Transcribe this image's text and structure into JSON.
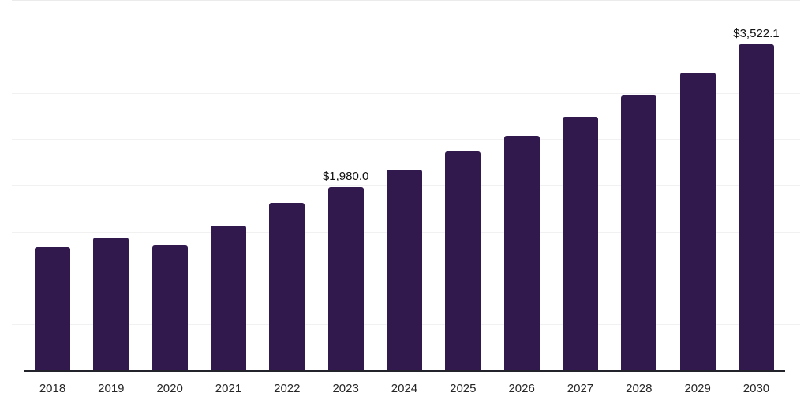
{
  "chart_data": {
    "type": "bar",
    "title": "",
    "xlabel": "",
    "ylabel": "",
    "categories": [
      "2018",
      "2019",
      "2020",
      "2021",
      "2022",
      "2023",
      "2024",
      "2025",
      "2026",
      "2027",
      "2028",
      "2029",
      "2030"
    ],
    "values": [
      1340,
      1440,
      1350,
      1570,
      1815,
      1980.0,
      2170,
      2365,
      2535,
      2740,
      2970,
      3220,
      3522.1
    ],
    "data_labels": [
      null,
      null,
      null,
      null,
      null,
      "$1,980.0",
      null,
      null,
      null,
      null,
      null,
      null,
      "$3,522.1"
    ],
    "ylim": [
      0,
      4000
    ],
    "grid_step": 500,
    "grid": true,
    "legend": false,
    "y_tick_labels_shown": false,
    "colors": {
      "bar": "#31194E",
      "axis": "#23232B",
      "gridline": "#F1F1F1",
      "top_gridline": "#EBEBEB",
      "tick_label": "#262626",
      "value_label": "#111111",
      "background": "#FFFFFF"
    }
  }
}
